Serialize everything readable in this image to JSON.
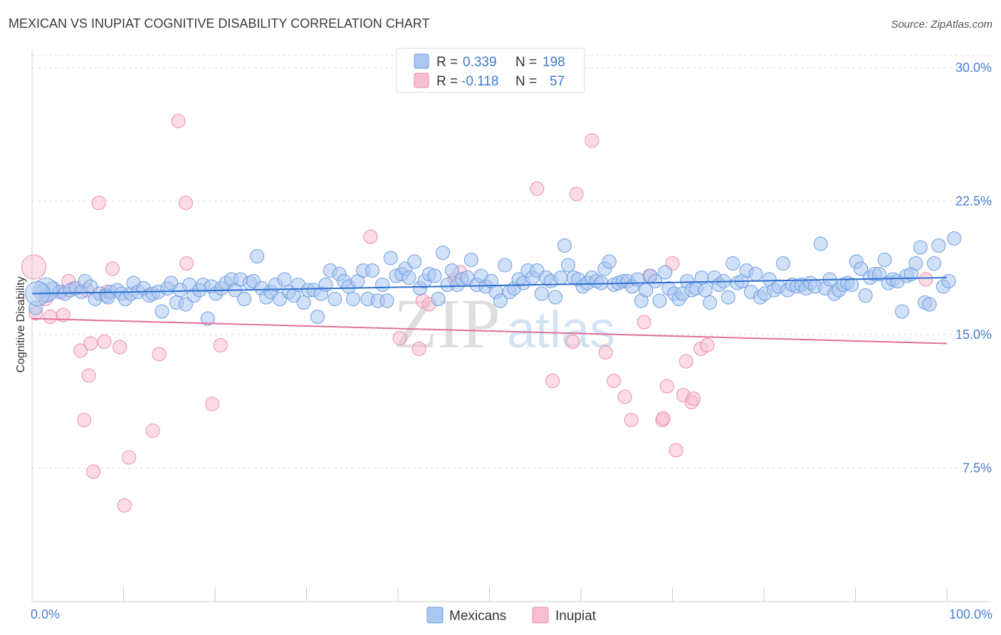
{
  "chart_data": {
    "type": "scatter",
    "title": "MEXICAN VS INUPIAT COGNITIVE DISABILITY CORRELATION CHART",
    "source": "Source: ZipAtlas.com",
    "ylabel": "Cognitive Disability",
    "xlabel": "",
    "xlim": [
      0,
      100
    ],
    "ylim": [
      0,
      31
    ],
    "x_tick_labels": [
      "0.0%",
      "100.0%"
    ],
    "y_ticks": [
      {
        "value": 7.5,
        "label": "7.5%"
      },
      {
        "value": 15.0,
        "label": "15.0%"
      },
      {
        "value": 22.5,
        "label": "22.5%"
      },
      {
        "value": 30.0,
        "label": "30.0%"
      }
    ],
    "legend": {
      "rows": [
        {
          "r_label": "R =",
          "r_value": "0.339",
          "n_label": "N =",
          "n_value": "198",
          "color": "#a9c7f0",
          "stroke": "#6f9fe0"
        },
        {
          "r_label": "R =",
          "r_value": "-0.118",
          "n_label": "N =",
          "n_value": "57",
          "color": "#f7bfd0",
          "stroke": "#ec8fae"
        }
      ]
    },
    "bottom_legend": [
      "Mexicans",
      "Inupiat"
    ],
    "watermark": {
      "zip": "ZIP",
      "atlas": "atlas"
    },
    "series": [
      {
        "name": "Mexicans",
        "fill": "#a9c7f0",
        "stroke": "#6f9fe0",
        "line_color": "#2f6fd0",
        "trend": [
          [
            0,
            17.3
          ],
          [
            100,
            18.2
          ]
        ],
        "points": [
          [
            0.4,
            16.5
          ],
          [
            1.2,
            17.5
          ],
          [
            1.6,
            17.2
          ],
          [
            2.3,
            17.6
          ],
          [
            3.0,
            17.4
          ],
          [
            3.6,
            17.3
          ],
          [
            4.2,
            17.5
          ],
          [
            4.8,
            17.6
          ],
          [
            5.4,
            17.4
          ],
          [
            5.8,
            18.0
          ],
          [
            6.4,
            17.7
          ],
          [
            6.9,
            17.0
          ],
          [
            7.4,
            17.3
          ],
          [
            8.1,
            17.2
          ],
          [
            8.6,
            17.4
          ],
          [
            9.3,
            17.5
          ],
          [
            9.8,
            17.3
          ],
          [
            10.2,
            17.0
          ],
          [
            10.8,
            17.3
          ],
          [
            11.1,
            17.9
          ],
          [
            11.6,
            17.4
          ],
          [
            12.2,
            17.6
          ],
          [
            12.8,
            17.2
          ],
          [
            13.2,
            17.3
          ],
          [
            13.8,
            17.4
          ],
          [
            14.2,
            16.3
          ],
          [
            14.8,
            17.6
          ],
          [
            15.2,
            17.9
          ],
          [
            15.8,
            16.8
          ],
          [
            16.2,
            17.5
          ],
          [
            16.8,
            16.7
          ],
          [
            17.2,
            17.8
          ],
          [
            17.7,
            17.2
          ],
          [
            18.3,
            17.5
          ],
          [
            18.7,
            17.8
          ],
          [
            19.2,
            15.9
          ],
          [
            19.6,
            17.7
          ],
          [
            20.1,
            17.3
          ],
          [
            20.7,
            17.6
          ],
          [
            21.2,
            17.9
          ],
          [
            21.8,
            18.1
          ],
          [
            22.2,
            17.5
          ],
          [
            22.8,
            18.1
          ],
          [
            23.2,
            17.0
          ],
          [
            23.8,
            17.9
          ],
          [
            24.2,
            18.0
          ],
          [
            24.6,
            19.4
          ],
          [
            25.1,
            17.6
          ],
          [
            25.6,
            17.1
          ],
          [
            26.1,
            17.4
          ],
          [
            26.6,
            17.8
          ],
          [
            27.1,
            17.0
          ],
          [
            27.6,
            18.1
          ],
          [
            28.1,
            17.4
          ],
          [
            28.6,
            17.2
          ],
          [
            29.1,
            17.8
          ],
          [
            29.7,
            16.8
          ],
          [
            30.2,
            17.5
          ],
          [
            30.8,
            17.5
          ],
          [
            31.2,
            16.0
          ],
          [
            31.6,
            17.3
          ],
          [
            32.1,
            17.8
          ],
          [
            32.6,
            18.6
          ],
          [
            33.1,
            17.0
          ],
          [
            33.6,
            18.4
          ],
          [
            34.1,
            18.0
          ],
          [
            34.6,
            17.7
          ],
          [
            35.1,
            17.0
          ],
          [
            35.6,
            18.0
          ],
          [
            36.2,
            18.6
          ],
          [
            36.7,
            17.0
          ],
          [
            37.2,
            18.6
          ],
          [
            37.8,
            16.9
          ],
          [
            38.3,
            17.8
          ],
          [
            38.8,
            16.9
          ],
          [
            39.2,
            19.3
          ],
          [
            39.8,
            18.3
          ],
          [
            40.4,
            18.4
          ],
          [
            40.8,
            18.7
          ],
          [
            41.2,
            18.2
          ],
          [
            41.8,
            19.1
          ],
          [
            42.4,
            17.6
          ],
          [
            42.9,
            18.0
          ],
          [
            43.4,
            18.4
          ],
          [
            44.0,
            18.3
          ],
          [
            44.4,
            17.0
          ],
          [
            44.9,
            19.6
          ],
          [
            45.4,
            17.8
          ],
          [
            45.9,
            18.6
          ],
          [
            46.5,
            17.8
          ],
          [
            47.0,
            18.1
          ],
          [
            47.6,
            18.2
          ],
          [
            48.0,
            19.2
          ],
          [
            48.6,
            17.8
          ],
          [
            49.1,
            18.3
          ],
          [
            49.6,
            17.7
          ],
          [
            50.2,
            18.0
          ],
          [
            50.7,
            17.4
          ],
          [
            51.2,
            16.9
          ],
          [
            51.7,
            18.9
          ],
          [
            52.2,
            17.4
          ],
          [
            52.7,
            17.6
          ],
          [
            53.2,
            18.1
          ],
          [
            53.7,
            17.9
          ],
          [
            54.2,
            18.6
          ],
          [
            54.7,
            18.2
          ],
          [
            55.2,
            18.6
          ],
          [
            55.7,
            17.3
          ],
          [
            56.2,
            18.2
          ],
          [
            56.7,
            18.0
          ],
          [
            57.2,
            17.1
          ],
          [
            57.8,
            18.2
          ],
          [
            58.2,
            20.0
          ],
          [
            58.6,
            18.9
          ],
          [
            59.2,
            18.2
          ],
          [
            59.7,
            18.1
          ],
          [
            60.2,
            17.7
          ],
          [
            60.7,
            17.9
          ],
          [
            61.2,
            18.2
          ],
          [
            61.7,
            18.0
          ],
          [
            62.2,
            17.9
          ],
          [
            62.6,
            18.7
          ],
          [
            63.1,
            19.1
          ],
          [
            63.6,
            17.8
          ],
          [
            64.1,
            17.9
          ],
          [
            64.6,
            18.0
          ],
          [
            65.1,
            18.0
          ],
          [
            65.6,
            17.7
          ],
          [
            66.2,
            18.1
          ],
          [
            66.6,
            16.9
          ],
          [
            67.1,
            17.5
          ],
          [
            67.6,
            18.3
          ],
          [
            68.1,
            18.0
          ],
          [
            68.6,
            16.9
          ],
          [
            69.2,
            18.5
          ],
          [
            69.6,
            17.6
          ],
          [
            70.2,
            17.3
          ],
          [
            70.7,
            17.0
          ],
          [
            71.1,
            17.3
          ],
          [
            71.6,
            18.0
          ],
          [
            72.1,
            17.5
          ],
          [
            72.6,
            17.6
          ],
          [
            73.2,
            18.2
          ],
          [
            73.6,
            17.5
          ],
          [
            74.1,
            16.8
          ],
          [
            74.6,
            18.2
          ],
          [
            75.1,
            17.8
          ],
          [
            75.6,
            18.0
          ],
          [
            76.1,
            17.1
          ],
          [
            76.6,
            19.0
          ],
          [
            77.1,
            17.9
          ],
          [
            77.6,
            18.0
          ],
          [
            78.1,
            18.6
          ],
          [
            78.6,
            17.4
          ],
          [
            79.1,
            18.4
          ],
          [
            79.6,
            17.1
          ],
          [
            80.1,
            17.3
          ],
          [
            80.6,
            18.1
          ],
          [
            81.1,
            17.5
          ],
          [
            81.6,
            17.7
          ],
          [
            82.1,
            19.0
          ],
          [
            82.6,
            17.5
          ],
          [
            83.1,
            17.8
          ],
          [
            83.6,
            17.7
          ],
          [
            84.1,
            17.8
          ],
          [
            84.6,
            17.6
          ],
          [
            85.1,
            17.9
          ],
          [
            85.6,
            17.7
          ],
          [
            86.2,
            20.1
          ],
          [
            86.7,
            17.6
          ],
          [
            87.2,
            18.1
          ],
          [
            87.7,
            17.3
          ],
          [
            88.2,
            17.5
          ],
          [
            88.7,
            17.8
          ],
          [
            89.1,
            17.9
          ],
          [
            89.6,
            17.8
          ],
          [
            90.1,
            19.1
          ],
          [
            90.6,
            18.7
          ],
          [
            91.1,
            17.2
          ],
          [
            91.6,
            18.2
          ],
          [
            92.1,
            18.4
          ],
          [
            92.6,
            18.4
          ],
          [
            93.2,
            19.2
          ],
          [
            93.6,
            17.9
          ],
          [
            94.1,
            18.1
          ],
          [
            94.6,
            18.0
          ],
          [
            95.1,
            16.3
          ],
          [
            95.6,
            18.3
          ],
          [
            96.1,
            18.4
          ],
          [
            96.6,
            19.0
          ],
          [
            97.1,
            19.9
          ],
          [
            97.6,
            16.8
          ],
          [
            98.1,
            16.7
          ],
          [
            98.6,
            19.0
          ],
          [
            99.1,
            20.0
          ],
          [
            99.6,
            17.7
          ],
          [
            100.2,
            18.0
          ],
          [
            100.8,
            20.4
          ],
          [
            8.3,
            17.1
          ]
        ],
        "big_points": [
          [
            1.5,
            17.5
          ],
          [
            0.6,
            17.3
          ]
        ]
      },
      {
        "name": "Inupiat",
        "fill": "#f7bfd0",
        "stroke": "#ec8fae",
        "line_color": "#e07098",
        "trend": [
          [
            0,
            15.9
          ],
          [
            100,
            14.5
          ]
        ],
        "points": [
          [
            0.4,
            16.2
          ],
          [
            1.5,
            17.0
          ],
          [
            2.0,
            16.0
          ],
          [
            3.2,
            17.4
          ],
          [
            3.4,
            16.1
          ],
          [
            4.0,
            18.0
          ],
          [
            4.6,
            17.6
          ],
          [
            5.3,
            14.1
          ],
          [
            5.7,
            10.2
          ],
          [
            6.0,
            17.5
          ],
          [
            6.2,
            12.7
          ],
          [
            6.4,
            14.5
          ],
          [
            6.7,
            7.3
          ],
          [
            7.3,
            22.4
          ],
          [
            7.9,
            14.6
          ],
          [
            8.2,
            17.4
          ],
          [
            8.8,
            18.7
          ],
          [
            9.6,
            14.3
          ],
          [
            10.1,
            5.4
          ],
          [
            10.6,
            8.1
          ],
          [
            13.2,
            9.6
          ],
          [
            13.9,
            13.9
          ],
          [
            16.0,
            27.0
          ],
          [
            16.8,
            22.4
          ],
          [
            16.9,
            19.0
          ],
          [
            19.7,
            11.1
          ],
          [
            20.6,
            14.4
          ],
          [
            37.0,
            20.5
          ],
          [
            40.2,
            14.8
          ],
          [
            42.3,
            14.2
          ],
          [
            42.7,
            16.9
          ],
          [
            43.4,
            16.7
          ],
          [
            46.2,
            18.1
          ],
          [
            46.8,
            18.5
          ],
          [
            55.2,
            23.2
          ],
          [
            56.9,
            12.4
          ],
          [
            59.1,
            14.6
          ],
          [
            59.5,
            22.9
          ],
          [
            61.2,
            25.9
          ],
          [
            62.7,
            14.0
          ],
          [
            63.6,
            12.4
          ],
          [
            64.8,
            11.5
          ],
          [
            65.5,
            10.2
          ],
          [
            66.9,
            15.7
          ],
          [
            67.5,
            18.3
          ],
          [
            68.9,
            10.2
          ],
          [
            69.0,
            10.3
          ],
          [
            69.4,
            12.1
          ],
          [
            70.0,
            19.0
          ],
          [
            70.4,
            8.5
          ],
          [
            71.2,
            11.6
          ],
          [
            71.5,
            13.5
          ],
          [
            72.1,
            11.2
          ],
          [
            72.3,
            11.4
          ],
          [
            73.1,
            14.2
          ],
          [
            73.8,
            14.4
          ],
          [
            97.7,
            18.1
          ]
        ],
        "big_points": [
          [
            0.2,
            18.8
          ]
        ]
      }
    ]
  }
}
